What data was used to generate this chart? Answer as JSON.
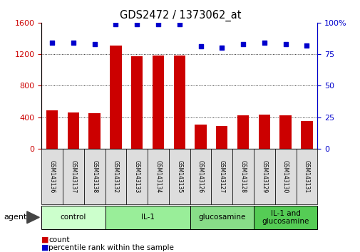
{
  "title": "GDS2472 / 1373062_at",
  "samples": [
    "GSM143136",
    "GSM143137",
    "GSM143138",
    "GSM143132",
    "GSM143133",
    "GSM143134",
    "GSM143135",
    "GSM143126",
    "GSM143127",
    "GSM143128",
    "GSM143129",
    "GSM143130",
    "GSM143131"
  ],
  "counts": [
    490,
    460,
    455,
    1310,
    1170,
    1185,
    1185,
    305,
    285,
    420,
    435,
    420,
    355
  ],
  "percentiles": [
    84,
    84,
    83,
    99,
    99,
    99,
    99,
    81,
    80,
    83,
    84,
    83,
    82
  ],
  "groups": [
    {
      "label": "control",
      "start": 0,
      "end": 3,
      "color": "#ccffcc"
    },
    {
      "label": "IL-1",
      "start": 3,
      "end": 7,
      "color": "#99ee99"
    },
    {
      "label": "glucosamine",
      "start": 7,
      "end": 10,
      "color": "#88dd88"
    },
    {
      "label": "IL-1 and\nglucosamine",
      "start": 10,
      "end": 13,
      "color": "#55cc55"
    }
  ],
  "bar_color": "#cc0000",
  "dot_color": "#0000cc",
  "left_ylim": [
    0,
    1600
  ],
  "left_yticks": [
    0,
    400,
    800,
    1200,
    1600
  ],
  "right_ylim": [
    0,
    100
  ],
  "right_yticks": [
    0,
    25,
    50,
    75,
    100
  ],
  "bg_color": "#ffffff",
  "tick_label_color_left": "#cc0000",
  "tick_label_color_right": "#0000cc",
  "xlabel_bg": "#cccccc",
  "agent_label": "agent",
  "legend_count_label": "count",
  "legend_pct_label": "percentile rank within the sample"
}
